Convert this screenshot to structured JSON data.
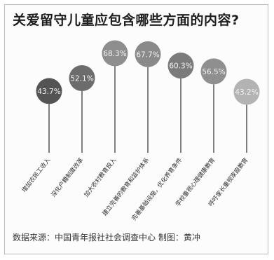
{
  "title": "关爱留守儿童应包含哪些方面的内容?",
  "source": "数据来源：中国青年报社社会调查中心  制图：黄冲",
  "chart_data": {
    "type": "lollipop",
    "title": "关爱留守儿童应包含哪些方面的内容?",
    "categories": [
      "增加农民工收入",
      "深化户籍制度改革",
      "加大农村教育投入",
      "建立完善的教育和监护体系",
      "完善基础设施，优化养育条件",
      "学校重视心理健康教育",
      "呼吁家长重视家庭教育"
    ],
    "values": [
      43.7,
      52.1,
      68.3,
      67.7,
      60.3,
      56.5,
      43.2
    ],
    "value_labels": [
      "43.7%",
      "52.1%",
      "68.3%",
      "67.7%",
      "60.3%",
      "56.5%",
      "43.2%"
    ],
    "unit": "%",
    "colors": [
      "#545454",
      "#6c6c6c",
      "#8e8e8e",
      "#8a8a8a",
      "#7b7b7b",
      "#8f8f8f",
      "#b3b3b3"
    ],
    "stem_color": "#4a4a4a",
    "grid": false,
    "legend": "none"
  }
}
